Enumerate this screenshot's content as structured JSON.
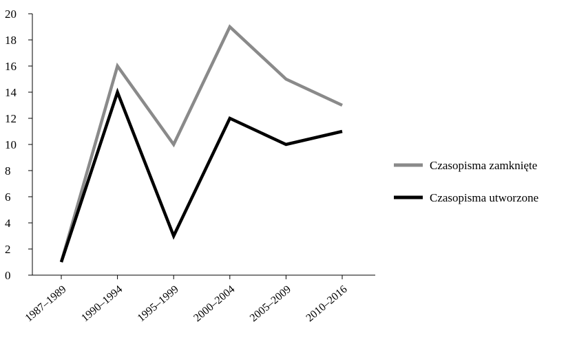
{
  "chart_data": {
    "type": "line",
    "categories": [
      "1987–1989",
      "1990–1994",
      "1995–1999",
      "2000–2004",
      "2005–2009",
      "2010–2016"
    ],
    "series": [
      {
        "name": "Czasopisma zamknięte",
        "values": [
          1,
          16,
          10,
          19,
          15,
          13
        ],
        "color": "#8a8a8a"
      },
      {
        "name": "Czasopisma utworzone",
        "values": [
          1,
          14,
          3,
          12,
          10,
          11
        ],
        "color": "#000000"
      }
    ],
    "ylim": [
      0,
      20
    ],
    "yticks": [
      0,
      2,
      4,
      6,
      8,
      10,
      12,
      14,
      16,
      18,
      20
    ],
    "title": "",
    "xlabel": "",
    "ylabel": "",
    "grid": false,
    "legend": "right"
  }
}
